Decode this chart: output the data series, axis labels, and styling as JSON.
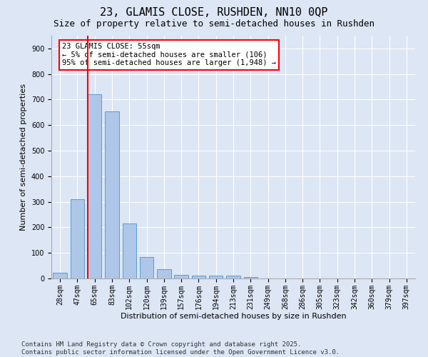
{
  "title": "23, GLAMIS CLOSE, RUSHDEN, NN10 0QP",
  "subtitle": "Size of property relative to semi-detached houses in Rushden",
  "xlabel": "Distribution of semi-detached houses by size in Rushden",
  "ylabel": "Number of semi-detached properties",
  "categories": [
    "28sqm",
    "47sqm",
    "65sqm",
    "83sqm",
    "102sqm",
    "120sqm",
    "139sqm",
    "157sqm",
    "176sqm",
    "194sqm",
    "213sqm",
    "231sqm",
    "249sqm",
    "268sqm",
    "286sqm",
    "305sqm",
    "323sqm",
    "342sqm",
    "360sqm",
    "379sqm",
    "397sqm"
  ],
  "values": [
    22,
    310,
    722,
    655,
    215,
    85,
    35,
    13,
    12,
    10,
    10,
    5,
    0,
    0,
    0,
    0,
    0,
    0,
    0,
    0,
    0
  ],
  "bar_color": "#aec6e8",
  "bar_edge_color": "#5b9bd5",
  "vline_color": "red",
  "vline_x_index": 1.6,
  "annotation_text": "23 GLAMIS CLOSE: 55sqm\n← 5% of semi-detached houses are smaller (106)\n95% of semi-detached houses are larger (1,948) →",
  "annotation_box_color": "white",
  "annotation_box_edge_color": "red",
  "ylim": [
    0,
    950
  ],
  "yticks": [
    0,
    100,
    200,
    300,
    400,
    500,
    600,
    700,
    800,
    900
  ],
  "bg_color": "#dce6f5",
  "plot_bg_color": "#dce6f5",
  "footer_text": "Contains HM Land Registry data © Crown copyright and database right 2025.\nContains public sector information licensed under the Open Government Licence v3.0.",
  "title_fontsize": 11,
  "subtitle_fontsize": 9,
  "axis_label_fontsize": 8,
  "tick_fontsize": 7,
  "annotation_fontsize": 7.5,
  "footer_fontsize": 6.5
}
